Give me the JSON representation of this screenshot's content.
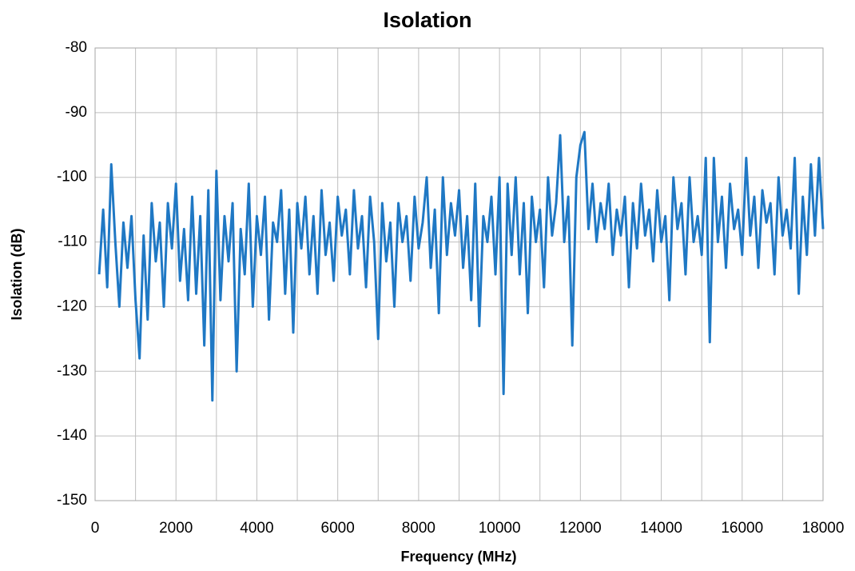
{
  "chart_data": {
    "type": "line",
    "title": "Isolation",
    "x_label": "Frequency (MHz)",
    "y_label": "Isolation (dB)",
    "xlim": [
      0,
      18000
    ],
    "xticks": [
      0,
      2000,
      4000,
      6000,
      8000,
      10000,
      12000,
      14000,
      16000,
      18000
    ],
    "x_minor_gridlines": [
      1000,
      3000,
      5000,
      7000,
      9000,
      11000,
      13000,
      15000,
      17000
    ],
    "ylim": [
      -150,
      -80
    ],
    "yticks": [
      -150,
      -140,
      -130,
      -120,
      -110,
      -100,
      -90,
      -80
    ],
    "grid": true,
    "x": [
      100,
      200,
      300,
      400,
      500,
      600,
      700,
      800,
      900,
      1000,
      1100,
      1200,
      1300,
      1400,
      1500,
      1600,
      1700,
      1800,
      1900,
      2000,
      2100,
      2200,
      2300,
      2400,
      2500,
      2600,
      2700,
      2800,
      2900,
      3000,
      3100,
      3200,
      3300,
      3400,
      3500,
      3600,
      3700,
      3800,
      3900,
      4000,
      4100,
      4200,
      4300,
      4400,
      4500,
      4600,
      4700,
      4800,
      4900,
      5000,
      5100,
      5200,
      5300,
      5400,
      5500,
      5600,
      5700,
      5800,
      5900,
      6000,
      6100,
      6200,
      6300,
      6400,
      6500,
      6600,
      6700,
      6800,
      6900,
      7000,
      7100,
      7200,
      7300,
      7400,
      7500,
      7600,
      7700,
      7800,
      7900,
      8000,
      8100,
      8200,
      8300,
      8400,
      8500,
      8600,
      8700,
      8800,
      8900,
      9000,
      9100,
      9200,
      9300,
      9400,
      9500,
      9600,
      9700,
      9800,
      9900,
      10000,
      10100,
      10200,
      10300,
      10400,
      10500,
      10600,
      10700,
      10800,
      10900,
      11000,
      11100,
      11200,
      11300,
      11400,
      11500,
      11600,
      11700,
      11800,
      11900,
      12000,
      12100,
      12200,
      12300,
      12400,
      12500,
      12600,
      12700,
      12800,
      12900,
      13000,
      13100,
      13200,
      13300,
      13400,
      13500,
      13600,
      13700,
      13800,
      13900,
      14000,
      14100,
      14200,
      14300,
      14400,
      14500,
      14600,
      14700,
      14800,
      14900,
      15000,
      15100,
      15200,
      15300,
      15400,
      15500,
      15600,
      15700,
      15800,
      15900,
      16000,
      16100,
      16200,
      16300,
      16400,
      16500,
      16600,
      16700,
      16800,
      16900,
      17000,
      17100,
      17200,
      17300,
      17400,
      17500,
      17600,
      17700,
      17800,
      17900,
      18000
    ],
    "series": [
      {
        "name": "Isolation",
        "color": "#1f78c4",
        "values": [
          -115,
          -105,
          -117,
          -98,
          -110,
          -120,
          -107,
          -114,
          -106,
          -119,
          -128,
          -109,
          -122,
          -104,
          -113,
          -107,
          -120,
          -104,
          -111,
          -101,
          -116,
          -108,
          -119,
          -103,
          -118,
          -106,
          -126,
          -102,
          -134.5,
          -99,
          -119,
          -106,
          -113,
          -104,
          -130,
          -108,
          -115,
          -101,
          -120,
          -106,
          -112,
          -103,
          -122,
          -107,
          -110,
          -102,
          -118,
          -105,
          -124,
          -104,
          -111,
          -103,
          -115,
          -106,
          -118,
          -102,
          -112,
          -107,
          -116,
          -103,
          -109,
          -105,
          -115,
          -102,
          -111,
          -106,
          -117,
          -103,
          -110,
          -125,
          -104,
          -113,
          -107,
          -120,
          -104,
          -110,
          -106,
          -116,
          -103,
          -111,
          -107,
          -100,
          -114,
          -105,
          -121,
          -100,
          -112,
          -104,
          -109,
          -102,
          -114,
          -106,
          -119,
          -101,
          -123,
          -106,
          -110,
          -103,
          -115,
          -100,
          -133.5,
          -101,
          -112,
          -100,
          -115,
          -104,
          -121,
          -103,
          -110,
          -105,
          -117,
          -100,
          -109,
          -104,
          -93.5,
          -110,
          -103,
          -126,
          -100,
          -95,
          -93,
          -108,
          -101,
          -110,
          -104,
          -108,
          -101,
          -112,
          -105,
          -109,
          -103,
          -117,
          -104,
          -111,
          -101,
          -109,
          -105,
          -113,
          -102,
          -110,
          -106,
          -119,
          -100,
          -108,
          -104,
          -115,
          -100,
          -110,
          -106,
          -112,
          -97,
          -125.5,
          -97,
          -110,
          -103,
          -114,
          -101,
          -108,
          -105,
          -112,
          -97,
          -109,
          -103,
          -114,
          -102,
          -107,
          -104,
          -115,
          -100,
          -109,
          -105,
          -111,
          -97,
          -118,
          -103,
          -112,
          -98,
          -109,
          -97,
          -108
        ]
      }
    ]
  }
}
